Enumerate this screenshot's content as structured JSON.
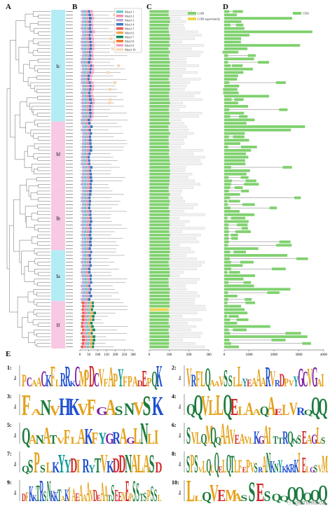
{
  "panels": {
    "A": {
      "letter": "A",
      "groups": [
        {
          "label": "Ic",
          "color": "#b3ecf5",
          "start": 0,
          "count": 33
        },
        {
          "label": "Id",
          "color": "#f8c9e4",
          "start": 33,
          "count": 19
        },
        {
          "label": "Ib",
          "color": "#f8c9e4",
          "start": 52,
          "count": 19
        },
        {
          "label": "Ia",
          "color": "#b3ecf5",
          "start": 71,
          "count": 15
        },
        {
          "label": "II",
          "color": "#f8c9e4",
          "start": 86,
          "count": 14
        }
      ]
    },
    "B": {
      "letter": "B",
      "legend": [
        {
          "label": "Motif 1",
          "color": "#69c8cf"
        },
        {
          "label": "Motif 2",
          "color": "#f08cab"
        },
        {
          "label": "Motif 3",
          "color": "#c0a3d8"
        },
        {
          "label": "Motif 4",
          "color": "#3b78c2"
        },
        {
          "label": "Motif 5",
          "color": "#e35c4f"
        },
        {
          "label": "Motif 6",
          "color": "#f4a54c"
        },
        {
          "label": "Motif 7",
          "color": "#148a5a"
        },
        {
          "label": "Motif 8",
          "color": "#f27830"
        },
        {
          "label": "Motif 9",
          "color": "#f5a0c0"
        },
        {
          "label": "Motif 10",
          "color": "#f8d6b0"
        }
      ],
      "axis_ticks": [
        "0",
        "50",
        "100",
        "150",
        "200",
        "250",
        "300"
      ]
    },
    "C": {
      "letter": "C",
      "legend": [
        {
          "label": "LOB",
          "color": "#7fd16e"
        },
        {
          "label": "LOB superfamily",
          "color": "#f2d44e"
        }
      ],
      "axis_ticks": [
        "0",
        "100",
        "200",
        "300"
      ]
    },
    "D": {
      "letter": "D",
      "legend": [
        {
          "label": "CDS",
          "color": "#7fd16e"
        }
      ],
      "axis_ticks": [
        "0",
        "1000",
        "2000",
        "3000",
        "4000"
      ]
    },
    "E": {
      "letter": "E",
      "axis_label": "Bits",
      "motifs": [
        {
          "num": "1:",
          "seq": "PCAACKFLRRKCMPDCVFAPYFPADEPQK"
        },
        {
          "num": "2:",
          "seq": "VRFLQAAVSSLLYEAAARVRDPVYGCVGAI"
        },
        {
          "num": "3:",
          "seq": "FANVHKVFGASNVSK"
        },
        {
          "num": "4:",
          "seq": "QQVLLQELAAQAELVRQQQ"
        },
        {
          "num": "5:",
          "seq": "QANATVFLAKFYGRAGLNLI"
        },
        {
          "num": "6:",
          "seq": "SVLQMQQAAVEAVLKGAITTRQNSEAGLS"
        },
        {
          "num": "7:",
          "seq": "QSPSLKYYDIRYTVKDDNALASD"
        },
        {
          "num": "8:",
          "seq": "SPSVLQLQELQTLFEPVSRANKNYKKRKIELGSVM"
        },
        {
          "num": "9:",
          "seq": "DFKKTRSNKKTAKIAEAAAVDEAATSEEMEPSSTSPSSL"
        },
        {
          "num": "10:",
          "seq": "LLQVEMASSESQQQQQQQ"
        }
      ]
    }
  },
  "watermark": "ⓘ geminkoda"
}
